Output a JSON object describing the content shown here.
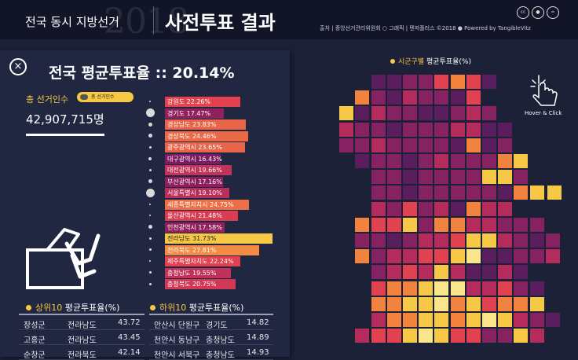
{
  "header": {
    "title": "전국 동시 지방선거",
    "watermark": "2018",
    "subtitle": "사전투표 결과",
    "credits": "출처 | 중앙선거관리위원회     ○ 그래픽 | 텐저플러스 ©2018    ● Powered by TangibleVitz",
    "license_icons": [
      "cc",
      "by",
      "="
    ]
  },
  "panel": {
    "close_glyph": "×",
    "national_turnout": "전국 평균투표율 :: 20.14%",
    "voters_label": "총 선거인수",
    "voters_legend": "총 선거인수",
    "voters_count": "42,907,715명"
  },
  "regions": [
    {
      "name": "강원도",
      "rate": 22.26,
      "label": "강원도 22.26%",
      "color": "#e2424f",
      "circle": 2
    },
    {
      "name": "경기도",
      "rate": 17.47,
      "label": "경기도 17.47%",
      "color": "#91205d",
      "circle": 11
    },
    {
      "name": "경상남도",
      "rate": 23.83,
      "label": "경상남도 23.83%",
      "color": "#e9654a",
      "circle": 5
    },
    {
      "name": "경상북도",
      "rate": 24.46,
      "label": "경상북도 24.46%",
      "color": "#ea6a48",
      "circle": 5
    },
    {
      "name": "광주광역시",
      "rate": 23.65,
      "label": "광주광역시 23.65%",
      "color": "#e9654a",
      "circle": 3
    },
    {
      "name": "대구광역시",
      "rate": 16.43,
      "label": "대구광역시 16.43%",
      "color": "#7e1a61",
      "circle": 4
    },
    {
      "name": "대전광역시",
      "rate": 19.66,
      "label": "대전광역시 19.66%",
      "color": "#c2335a",
      "circle": 3
    },
    {
      "name": "부산광역시",
      "rate": 17.16,
      "label": "부산광역시 17.16%",
      "color": "#8e1f5e",
      "circle": 5
    },
    {
      "name": "서울특별시",
      "rate": 19.1,
      "label": "서울특별시 19.10%",
      "color": "#b82f5c",
      "circle": 11
    },
    {
      "name": "세종특별자치시",
      "rate": 24.75,
      "label": "세종특별자치시 24.75%",
      "color": "#ec6f47",
      "circle": 2
    },
    {
      "name": "울산광역시",
      "rate": 21.48,
      "label": "울산광역시 21.48%",
      "color": "#d93d54",
      "circle": 2
    },
    {
      "name": "인천광역시",
      "rate": 17.58,
      "label": "인천광역시 17.58%",
      "color": "#93215d",
      "circle": 5
    },
    {
      "name": "전라남도",
      "rate": 31.73,
      "label": "전라남도 31.73%",
      "color": "#f6c845",
      "circle": 3
    },
    {
      "name": "전라북도",
      "rate": 27.81,
      "label": "전라북도 27.81%",
      "color": "#f28b43",
      "circle": 3
    },
    {
      "name": "제주특별자치도",
      "rate": 22.24,
      "label": "제주특별자치도 22.24%",
      "color": "#e2424f",
      "circle": 2
    },
    {
      "name": "충청남도",
      "rate": 19.55,
      "label": "충청남도 19.55%",
      "color": "#c0325a",
      "circle": 3
    },
    {
      "name": "충청북도",
      "rate": 20.75,
      "label": "충청북도 20.75%",
      "color": "#d03856",
      "circle": 3
    }
  ],
  "top10": {
    "rank_label": "상위10",
    "metric_label": "평균투표율(%)",
    "rows": [
      {
        "sigungu": "장성군",
        "sido": "전라남도",
        "value": "43.72"
      },
      {
        "sigungu": "고흥군",
        "sido": "전라남도",
        "value": "43.45"
      },
      {
        "sigungu": "순창군",
        "sido": "전라북도",
        "value": "42.14"
      }
    ]
  },
  "bottom10": {
    "rank_label": "하위10",
    "metric_label": "평균투표율(%)",
    "rows": [
      {
        "sigungu": "안산시 단원구",
        "sido": "경기도",
        "value": "14.82"
      },
      {
        "sigungu": "천안시 동남구",
        "sido": "충청남도",
        "value": "14.89"
      },
      {
        "sigungu": "천안시 서북구",
        "sido": "충청남도",
        "value": "14.93"
      }
    ]
  },
  "map": {
    "title_highlight": "시군구별",
    "title_rest": "평균투표율(%)",
    "hover_hint": "Hover & Click",
    "palette": {
      "a": "#5a1d5e",
      "b": "#862261",
      "c": "#b52c5c",
      "d": "#e2424f",
      "e": "#f2833f",
      "f": "#f6c845",
      "g": "#fbe58a"
    },
    "grid_rows": [
      "...........................",
      "...........................",
      "...........................",
      "...........................",
      "...........................",
      "...........................",
      "...........................",
      "...........................",
      "...........................",
      "...........................",
      "...........................",
      "...........................",
      "...........................",
      "...........................",
      "...........................",
      "...........................",
      "..........................."
    ]
  }
}
